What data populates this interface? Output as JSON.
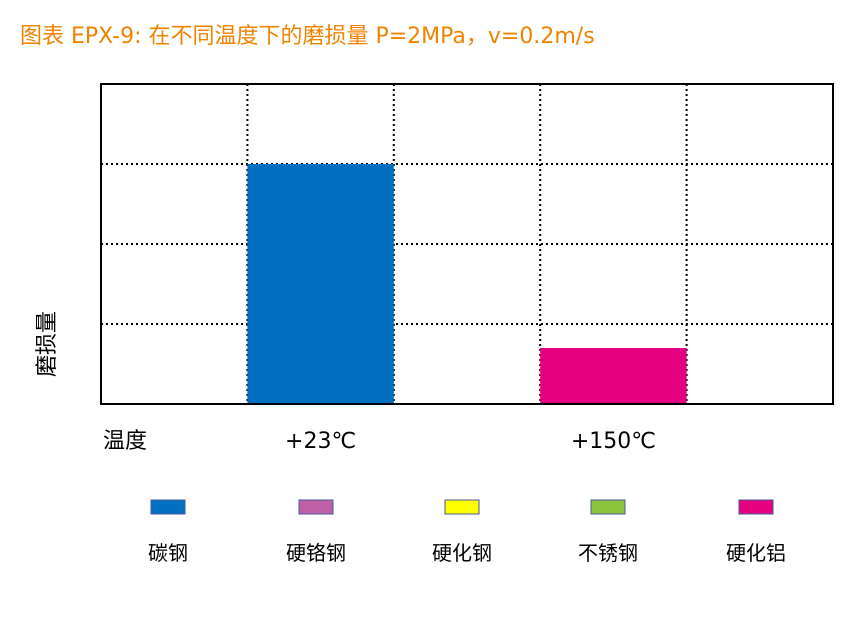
{
  "chart_data": {
    "type": "bar",
    "title": "图表 EPX-9: 在不同温度下的磨损量 P=2MPa，v=0.2m/s",
    "xlabel": "温度",
    "ylabel": "磨损量",
    "categories": [
      "",
      "+23℃",
      "",
      "+150℃",
      ""
    ],
    "ylim": [
      0,
      4
    ],
    "grid": true,
    "legend_position": "bottom",
    "series": [
      {
        "name": "碳钢",
        "color": "#0070c0",
        "values": [
          null,
          3,
          null,
          null,
          null
        ]
      },
      {
        "name": "硬铬钢",
        "color": "#c061a8",
        "values": [
          null,
          null,
          null,
          null,
          null
        ]
      },
      {
        "name": "硬化钢",
        "color": "#ffff00",
        "values": [
          null,
          null,
          null,
          null,
          null
        ]
      },
      {
        "name": "不锈钢",
        "color": "#8cc43d",
        "values": [
          null,
          null,
          null,
          null,
          null
        ]
      },
      {
        "name": "硬化铝",
        "color": "#e4007f",
        "values": [
          null,
          null,
          null,
          0.7,
          null
        ]
      }
    ]
  }
}
